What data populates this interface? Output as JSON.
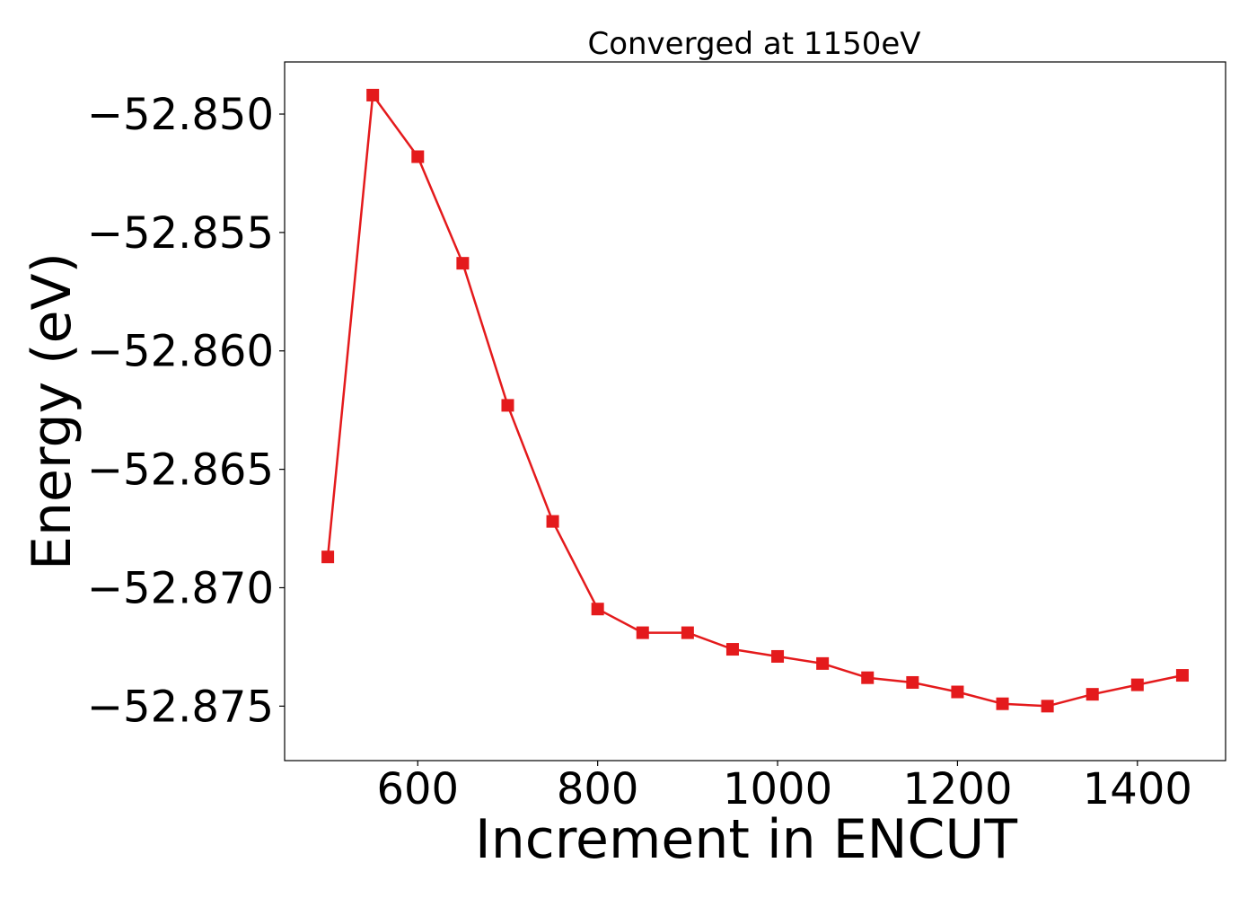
{
  "chart_data": {
    "type": "line",
    "title": "Converged at 1150eV",
    "xlabel": "Increment in ENCUT",
    "ylabel": "Energy (eV)",
    "xlim": [
      452,
      1498
    ],
    "ylim": [
      -52.8773,
      -52.8478
    ],
    "xticks": [
      600,
      800,
      1000,
      1200,
      1400
    ],
    "xtick_labels": [
      "600",
      "800",
      "1000",
      "1200",
      "1400"
    ],
    "yticks": [
      -52.85,
      -52.855,
      -52.86,
      -52.865,
      -52.87,
      -52.875
    ],
    "ytick_labels": [
      "−52.850",
      "−52.855",
      "−52.860",
      "−52.865",
      "−52.870",
      "−52.875"
    ],
    "grid": false,
    "marker": "square",
    "series": [
      {
        "name": "",
        "color": "#e41a1c",
        "x": [
          500,
          550,
          600,
          650,
          700,
          750,
          800,
          850,
          900,
          950,
          1000,
          1050,
          1100,
          1150,
          1200,
          1250,
          1300,
          1350,
          1400,
          1450
        ],
        "y": [
          -52.8687,
          -52.8492,
          -52.8518,
          -52.8563,
          -52.8623,
          -52.8672,
          -52.8709,
          -52.8719,
          -52.8719,
          -52.8726,
          -52.8729,
          -52.8732,
          -52.8738,
          -52.874,
          -52.8744,
          -52.8749,
          -52.875,
          -52.8745,
          -52.8741,
          -52.8737
        ]
      }
    ]
  }
}
